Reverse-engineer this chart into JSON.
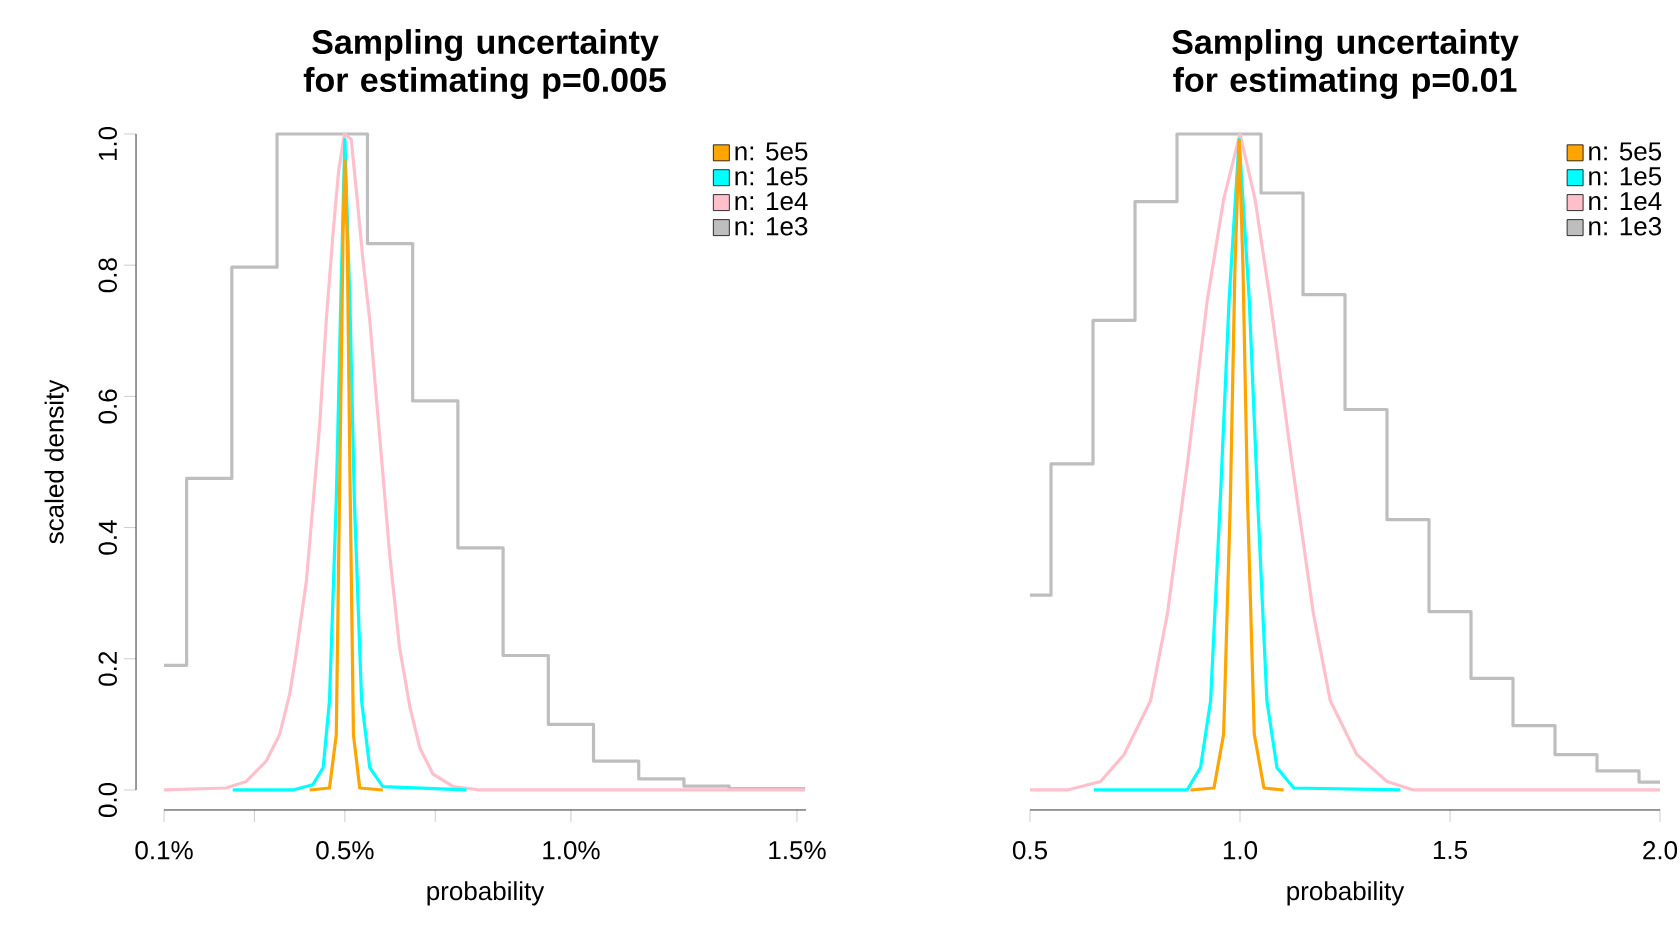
{
  "chart_data": [
    {
      "type": "line",
      "title": "Sampling uncertainty for estimating p=0.005",
      "xlabel": "probability",
      "ylabel": "scaled density",
      "xlim": [
        0.1,
        1.52
      ],
      "ylim": [
        0,
        1
      ],
      "xticks": [
        {
          "value": 0.1,
          "label": "0.1%"
        },
        {
          "value": 0.3,
          "label": null
        },
        {
          "value": 0.5,
          "label": "0.5%"
        },
        {
          "value": 0.7,
          "label": null
        },
        {
          "value": 1.0,
          "label": "1.0%"
        },
        {
          "value": 1.5,
          "label": "1.5%"
        }
      ],
      "yticks": [
        {
          "value": 0,
          "label": "0.0"
        },
        0.2,
        0.4,
        0.6,
        0.8,
        {
          "value": 1,
          "label": "1.0"
        }
      ],
      "legend": "top right",
      "grid": false,
      "marker": "none",
      "line_style": "solid",
      "series": [
        {
          "name": "n: 5e5",
          "color": "#ffa500",
          "x": [
            0.422,
            0.466,
            0.481,
            0.488,
            0.496,
            0.5,
            0.505,
            0.512,
            0.519,
            0.533,
            0.584
          ],
          "values": [
            0,
            0.003,
            0.084,
            0.44,
            0.848,
            0.96,
            0.848,
            0.44,
            0.084,
            0.003,
            0
          ]
        },
        {
          "name": "n: 1e5",
          "color": "#00ffff",
          "x": [
            0.252,
            0.385,
            0.429,
            0.452,
            0.466,
            0.481,
            0.491,
            0.5,
            0.511,
            0.521,
            0.537,
            0.555,
            0.584,
            0.769
          ],
          "values": [
            0,
            0,
            0.008,
            0.034,
            0.136,
            0.441,
            0.747,
            0.992,
            0.747,
            0.441,
            0.136,
            0.034,
            0.005,
            0
          ]
        },
        {
          "name": "n: 1e4",
          "color": "#ffc0cb",
          "x": [
            0.1,
            0.237,
            0.282,
            0.326,
            0.356,
            0.378,
            0.392,
            0.415,
            0.429,
            0.444,
            0.459,
            0.474,
            0.486,
            0.499,
            0.514,
            0.526,
            0.54,
            0.555,
            0.57,
            0.584,
            0.599,
            0.621,
            0.644,
            0.666,
            0.695,
            0.74,
            0.799,
            1.518
          ],
          "values": [
            0,
            0.003,
            0.013,
            0.044,
            0.085,
            0.146,
            0.207,
            0.319,
            0.431,
            0.554,
            0.717,
            0.85,
            0.942,
            1.0,
            0.992,
            0.91,
            0.808,
            0.717,
            0.595,
            0.483,
            0.36,
            0.217,
            0.126,
            0.064,
            0.024,
            0.005,
            0,
            0
          ]
        },
        {
          "name": "n: 1e3",
          "color": "#bebebe",
          "type": "step",
          "x": [
            0.1,
            0.15,
            0.25,
            0.35,
            0.55,
            0.65,
            0.75,
            0.85,
            0.95,
            1.05,
            1.15,
            1.25,
            1.35,
            1.518
          ],
          "values": [
            0.19,
            0.475,
            0.797,
            1.0,
            0.833,
            0.593,
            0.369,
            0.205,
            0.1,
            0.044,
            0.017,
            0.006,
            0.002,
            0.002
          ]
        }
      ]
    },
    {
      "type": "line",
      "title": "Sampling uncertainty for estimating p=0.01",
      "xlabel": "probability",
      "xlim": [
        0.5,
        2.0
      ],
      "ylim": [
        0,
        1
      ],
      "tick_labels": "x",
      "xticks": [
        0.5,
        {
          "value": 1.0,
          "label": "1.0"
        },
        1.5,
        {
          "value": 2.0,
          "label": "2.0"
        }
      ],
      "legend": "top right",
      "grid": false,
      "marker": "none",
      "line_style": "solid",
      "series": [
        {
          "name": "n: 5e5",
          "color": "#ffa500",
          "x": [
            0.882,
            0.938,
            0.961,
            0.977,
            0.988,
            0.998,
            1.007,
            1.018,
            1.034,
            1.057,
            1.104
          ],
          "values": [
            0,
            0.003,
            0.085,
            0.441,
            0.798,
            0.99,
            0.798,
            0.441,
            0.085,
            0.003,
            0
          ]
        },
        {
          "name": "n: 1e5",
          "color": "#00ffff",
          "x": [
            0.652,
            0.874,
            0.906,
            0.93,
            0.953,
            0.974,
            0.998,
            1.022,
            1.042,
            1.064,
            1.088,
            1.128,
            1.382
          ],
          "values": [
            0,
            0,
            0.034,
            0.136,
            0.441,
            0.747,
            0.992,
            0.747,
            0.441,
            0.136,
            0.034,
            0.003,
            0
          ]
        },
        {
          "name": "n: 1e4",
          "color": "#ffc0cb",
          "x": [
            0.5,
            0.589,
            0.668,
            0.724,
            0.787,
            0.827,
            0.874,
            0.922,
            0.961,
            1.0,
            1.036,
            1.072,
            1.125,
            1.175,
            1.215,
            1.278,
            1.35,
            1.413,
            2.0
          ],
          "values": [
            0,
            0,
            0.013,
            0.054,
            0.136,
            0.268,
            0.493,
            0.746,
            0.9,
            1.0,
            0.9,
            0.746,
            0.493,
            0.268,
            0.136,
            0.054,
            0.013,
            0,
            0
          ]
        },
        {
          "name": "n: 1e3",
          "color": "#bebebe",
          "type": "step",
          "x": [
            0.5,
            0.55,
            0.65,
            0.75,
            0.85,
            1.05,
            1.15,
            1.25,
            1.35,
            1.45,
            1.55,
            1.65,
            1.75,
            1.85,
            1.95,
            2.0
          ],
          "values": [
            0.297,
            0.497,
            0.716,
            0.897,
            1.0,
            0.91,
            0.755,
            0.58,
            0.412,
            0.272,
            0.17,
            0.098,
            0.054,
            0.029,
            0.012,
            0.012
          ]
        }
      ]
    }
  ]
}
